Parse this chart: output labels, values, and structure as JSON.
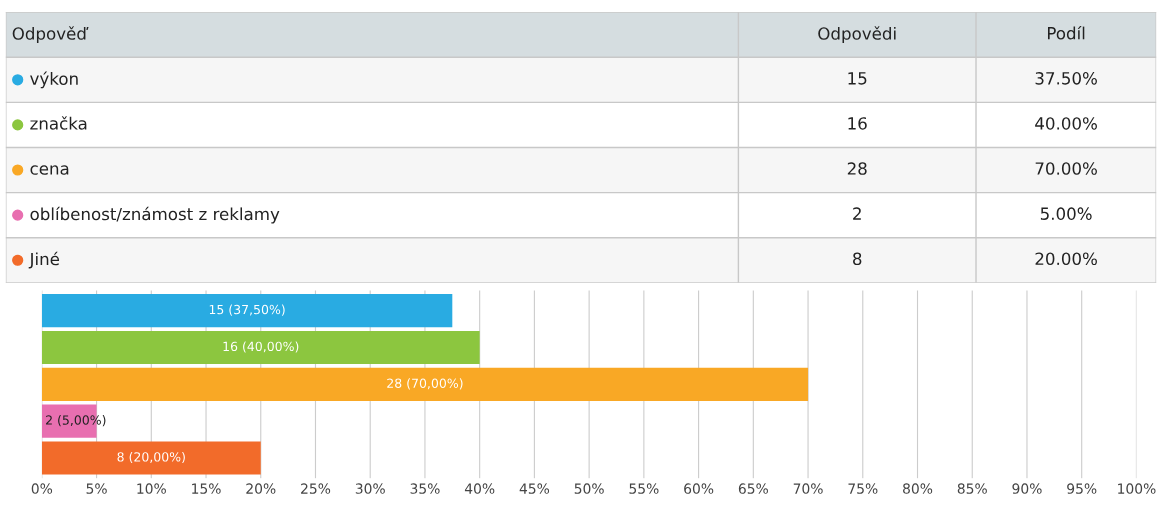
{
  "chart_data": [
    {
      "type": "other",
      "annotations": [
        "Odpověď",
        "Odpovědi",
        "Podíl",
        "výkon",
        "15",
        "37.50%",
        "značka",
        "16",
        "40.00%",
        "cena",
        "28",
        "70.00%",
        "oblíbenost/známost z reklamy",
        "2",
        "5.00%",
        "Jiné",
        "8",
        "20.00%"
      ]
    },
    {
      "type": "bar",
      "orientation": "horizontal",
      "categories": [
        null,
        null,
        null,
        null,
        null
      ],
      "values": [
        37.5,
        40,
        70,
        5,
        20
      ],
      "colors": [
        "#29abe2",
        "#8cc63f",
        "#f9a825",
        "#e86fb0",
        "#f26b2a"
      ],
      "value_labels": [
        "15 (37,50%)",
        "16 (40,00%)",
        "28 (70,00%)",
        "2 (5,00%)",
        "8 (20,00%)"
      ],
      "xlim": [
        0,
        100
      ],
      "xticks": [
        {
          "value": 0,
          "label": "0%"
        },
        {
          "value": 5,
          "label": "5%"
        },
        {
          "value": 10,
          "label": "10%"
        },
        {
          "value": 15,
          "label": "15%"
        },
        {
          "value": 20,
          "label": "20%"
        },
        {
          "value": 25,
          "label": "25%"
        },
        {
          "value": 30,
          "label": "30%"
        },
        {
          "value": 35,
          "label": "35%"
        },
        {
          "value": 40,
          "label": "40%"
        },
        {
          "value": 45,
          "label": "45%"
        },
        {
          "value": 50,
          "label": "50%"
        },
        {
          "value": 55,
          "label": "55%"
        },
        {
          "value": 60,
          "label": "60%"
        },
        {
          "value": 65,
          "label": "65%"
        },
        {
          "value": 70,
          "label": "70%"
        },
        {
          "value": 75,
          "label": "75%"
        },
        {
          "value": 80,
          "label": "80%"
        },
        {
          "value": 85,
          "label": "85%"
        },
        {
          "value": 90,
          "label": "90%"
        },
        {
          "value": 95,
          "label": "95%"
        },
        {
          "value": 100,
          "label": "100%"
        }
      ],
      "grid": "x",
      "tick_labels": "x"
    }
  ]
}
